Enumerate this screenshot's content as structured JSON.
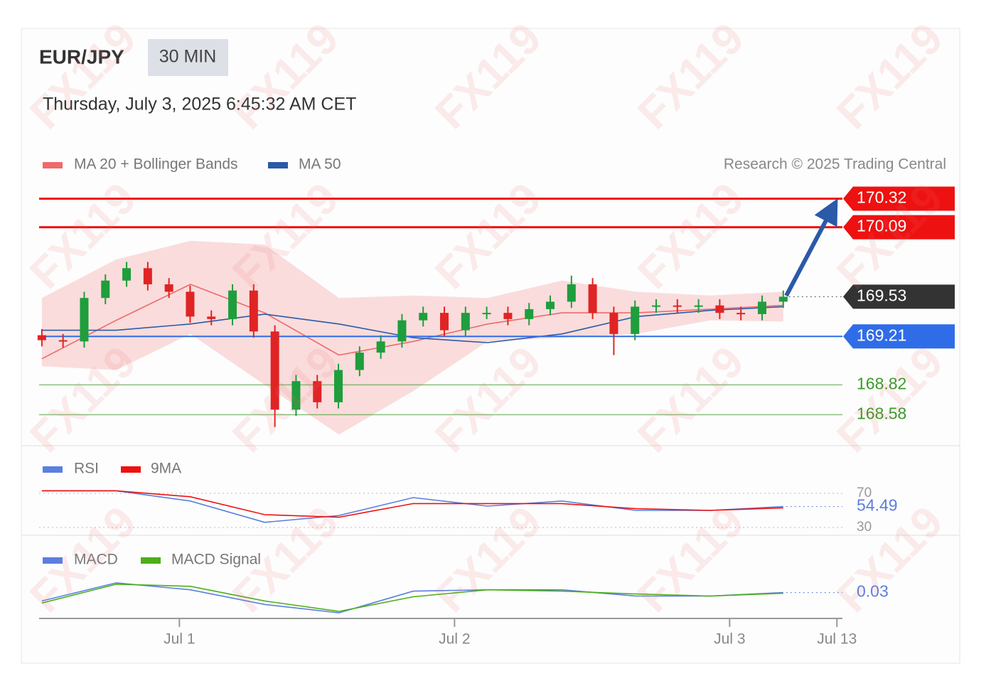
{
  "watermark": "FX119",
  "chart_data": [
    {
      "type": "candlestick",
      "title": "EUR/JPY",
      "timeframe": "30 MIN",
      "subtitle": "Thursday, July 3, 2025 6:45:32 AM CET",
      "credit": "Research © 2025 Trading Central",
      "up_color": "#1e9e3c",
      "down_color": "#e02424",
      "xlim": [
        0.49,
        3.41
      ],
      "xticks": [
        {
          "value": 1,
          "label": "Jul 1"
        },
        {
          "value": 2,
          "label": "Jul 2"
        },
        {
          "value": 3,
          "label": "Jul 3"
        },
        {
          "value": 3.39,
          "label": "Jul 13"
        }
      ],
      "ylim": [
        168.37,
        170.42
      ],
      "x": [
        0.5,
        0.577,
        0.654,
        0.731,
        0.808,
        0.885,
        0.962,
        1.039,
        1.116,
        1.193,
        1.27,
        1.347,
        1.424,
        1.501,
        1.578,
        1.655,
        1.732,
        1.809,
        1.886,
        1.963,
        2.04,
        2.117,
        2.194,
        2.271,
        2.348,
        2.425,
        2.502,
        2.579,
        2.656,
        2.733,
        2.81,
        2.887,
        2.964,
        3.041,
        3.118,
        3.195
      ],
      "open": [
        169.22,
        169.18,
        169.17,
        169.52,
        169.66,
        169.76,
        169.63,
        169.57,
        169.37,
        169.35,
        169.58,
        169.25,
        168.62,
        168.85,
        168.68,
        168.94,
        169.08,
        169.17,
        169.34,
        169.4,
        169.26,
        169.4,
        169.4,
        169.35,
        169.43,
        169.49,
        169.63,
        169.4,
        169.23,
        169.45,
        169.46,
        169.45,
        169.46,
        169.4,
        169.39,
        169.49
      ],
      "high": [
        169.27,
        169.23,
        169.57,
        169.71,
        169.81,
        169.81,
        169.68,
        169.62,
        169.42,
        169.63,
        169.63,
        169.3,
        168.9,
        168.9,
        168.99,
        169.13,
        169.22,
        169.39,
        169.45,
        169.45,
        169.45,
        169.45,
        169.45,
        169.48,
        169.54,
        169.7,
        169.68,
        169.45,
        169.5,
        169.51,
        169.51,
        169.51,
        169.51,
        169.45,
        169.54,
        169.58
      ],
      "low": [
        169.13,
        169.12,
        169.12,
        169.47,
        169.61,
        169.58,
        169.52,
        169.32,
        169.3,
        169.3,
        169.2,
        168.48,
        168.57,
        168.63,
        168.63,
        168.89,
        169.03,
        169.12,
        169.29,
        169.21,
        169.21,
        169.35,
        169.3,
        169.3,
        169.38,
        169.44,
        169.35,
        169.06,
        169.18,
        169.4,
        169.4,
        169.4,
        169.35,
        169.34,
        169.34,
        169.44
      ],
      "close": [
        169.18,
        169.17,
        169.52,
        169.66,
        169.76,
        169.63,
        169.57,
        169.37,
        169.35,
        169.58,
        169.25,
        168.62,
        168.85,
        168.68,
        168.94,
        169.08,
        169.17,
        169.34,
        169.4,
        169.26,
        169.4,
        169.4,
        169.35,
        169.43,
        169.49,
        169.63,
        169.4,
        169.23,
        169.45,
        169.46,
        169.45,
        169.46,
        169.4,
        169.39,
        169.49,
        169.53
      ],
      "series": [
        {
          "name": "MA 20 + Bollinger Bands",
          "color": "#f06a6a",
          "x": [
            0.5,
            0.77,
            1.04,
            1.31,
            1.58,
            1.85,
            2.12,
            2.39,
            2.66,
            2.93,
            3.195
          ],
          "values": [
            169.03,
            169.34,
            169.63,
            169.4,
            169.06,
            169.17,
            169.31,
            169.4,
            169.4,
            169.43,
            169.46
          ],
          "upper": [
            169.52,
            169.83,
            169.98,
            169.95,
            169.52,
            169.54,
            169.52,
            169.66,
            169.57,
            169.54,
            169.57
          ],
          "lower": [
            168.97,
            168.94,
            169.23,
            168.82,
            168.42,
            168.77,
            169.17,
            169.2,
            169.23,
            169.34,
            169.33
          ]
        },
        {
          "name": "MA 50",
          "color": "#2a5aa8",
          "x": [
            0.5,
            0.77,
            1.04,
            1.31,
            1.58,
            1.85,
            2.12,
            2.39,
            2.66,
            2.93,
            3.195
          ],
          "values": [
            169.26,
            169.26,
            169.31,
            169.39,
            169.31,
            169.2,
            169.16,
            169.23,
            169.37,
            169.42,
            169.45
          ]
        }
      ],
      "levels": [
        {
          "value": 170.32,
          "color": "#ee1111",
          "tag": true
        },
        {
          "value": 170.09,
          "color": "#ee1111",
          "tag": true
        },
        {
          "value": 169.21,
          "color": "#2f6de8",
          "tag": true
        },
        {
          "value": 168.82,
          "color": "#3a9a28",
          "tag": false
        },
        {
          "value": 168.58,
          "color": "#3a9a28",
          "tag": false
        }
      ]
    },
    {
      "type": "line",
      "ylim": [
        25,
        80
      ],
      "yticks": [
        30,
        70
      ],
      "series": [
        {
          "name": "RSI",
          "color": "#5b7fe0",
          "x": [
            0.5,
            0.77,
            1.04,
            1.31,
            1.58,
            1.85,
            2.12,
            2.39,
            2.66,
            2.93,
            3.195
          ],
          "values": [
            73,
            73,
            61,
            36,
            44,
            65,
            55,
            61,
            50,
            50,
            54.49
          ]
        },
        {
          "name": "9MA",
          "color": "#ee1111",
          "x": [
            0.5,
            0.77,
            1.04,
            1.31,
            1.58,
            1.85,
            2.12,
            2.39,
            2.66,
            2.93,
            3.195
          ],
          "values": [
            73,
            73,
            66,
            45,
            42,
            58,
            58,
            58,
            52,
            50,
            53
          ]
        }
      ]
    },
    {
      "type": "line",
      "ylim": [
        -0.3,
        0.25
      ],
      "series": [
        {
          "name": "MACD",
          "color": "#5b7fe0",
          "x": [
            0.5,
            0.77,
            1.04,
            1.31,
            1.58,
            1.85,
            2.12,
            2.39,
            2.66,
            2.93,
            3.195
          ],
          "values": [
            -0.09,
            0.17,
            0.07,
            -0.14,
            -0.26,
            0.05,
            0.07,
            0.07,
            -0.02,
            -0.02,
            0.03
          ]
        },
        {
          "name": "MACD Signal",
          "color": "#4caf1a",
          "x": [
            0.5,
            0.77,
            1.04,
            1.31,
            1.58,
            1.85,
            2.12,
            2.39,
            2.66,
            2.93,
            3.195
          ],
          "values": [
            -0.12,
            0.15,
            0.12,
            -0.09,
            -0.24,
            -0.03,
            0.07,
            0.05,
            0.01,
            -0.02,
            0.02
          ]
        }
      ]
    }
  ]
}
